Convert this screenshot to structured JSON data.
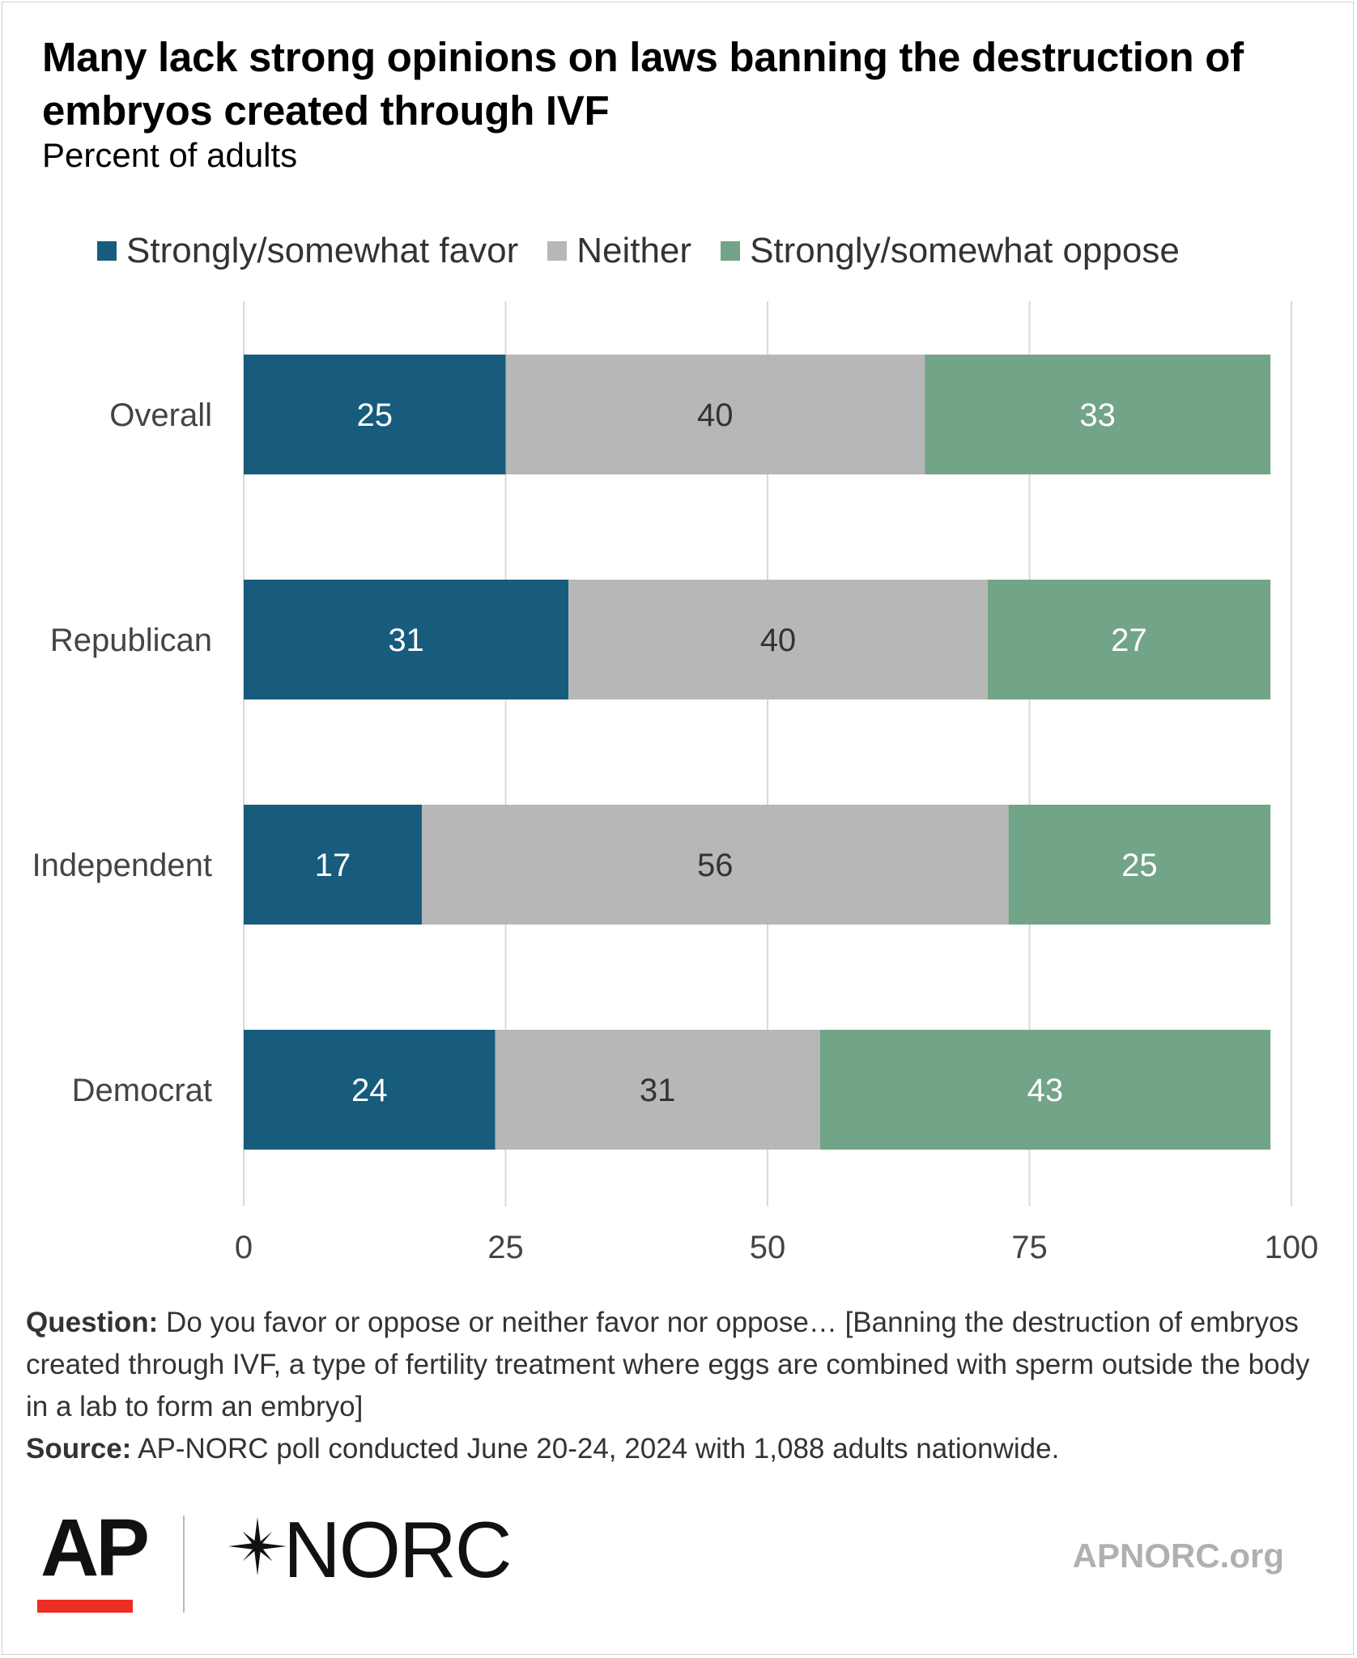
{
  "title": "Many lack strong opinions on laws banning the destruction of embryos created through IVF",
  "subtitle": "Percent of adults",
  "legend": [
    {
      "label": "Strongly/somewhat favor",
      "color": "#175c7c"
    },
    {
      "label": "Neither",
      "color": "#b7b7b7"
    },
    {
      "label": "Strongly/somewhat oppose",
      "color": "#72a488"
    }
  ],
  "chart_data": {
    "type": "bar",
    "orientation": "horizontal",
    "stacked": true,
    "categories": [
      "Overall",
      "Republican",
      "Independent",
      "Democrat"
    ],
    "series": [
      {
        "name": "Strongly/somewhat favor",
        "values": [
          25,
          31,
          17,
          24
        ],
        "color": "#175c7c",
        "label_color": "#ffffff"
      },
      {
        "name": "Neither",
        "values": [
          40,
          40,
          56,
          31
        ],
        "color": "#b7b7b7",
        "label_color": "#333333"
      },
      {
        "name": "Strongly/somewhat oppose",
        "values": [
          33,
          27,
          25,
          43
        ],
        "color": "#72a488",
        "label_color": "#ffffff"
      }
    ],
    "xlim": [
      0,
      100
    ],
    "xticks": [
      0,
      25,
      50,
      75,
      100
    ],
    "grid": true,
    "legend_position": "top"
  },
  "notes": {
    "question_label": "Question:",
    "question_text": " Do you favor or oppose or neither favor nor oppose… [Banning the destruction of embryos created through IVF, a type of fertility treatment where eggs are combined with sperm outside the body in a lab to form an embryo]",
    "source_label": "Source:",
    "source_text": " AP-NORC poll conducted June 20-24, 2024 with 1,088 adults nationwide."
  },
  "footer": {
    "ap_logo": "AP",
    "norc_logo": "NORC",
    "site": "APNORC.org"
  }
}
